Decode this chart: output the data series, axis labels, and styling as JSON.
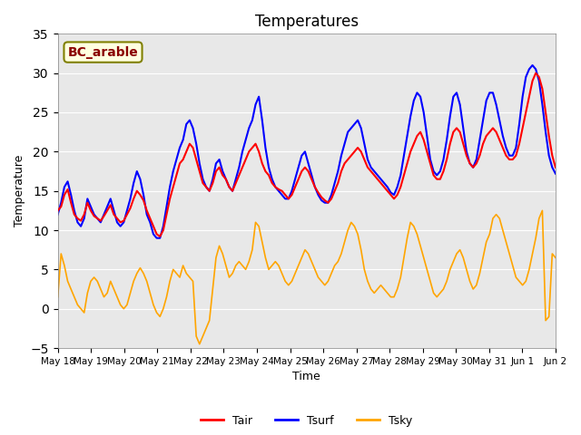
{
  "title": "Temperatures",
  "xlabel": "Time",
  "ylabel": "Temperature",
  "ylim": [
    -5,
    35
  ],
  "yticks": [
    -5,
    0,
    5,
    10,
    15,
    20,
    25,
    30,
    35
  ],
  "annotation": "BC_arable",
  "bg_color": "#e8e8e8",
  "line_colors": {
    "Tair": "red",
    "Tsurf": "blue",
    "Tsky": "orange"
  },
  "line_widths": {
    "Tair": 1.5,
    "Tsurf": 1.5,
    "Tsky": 1.2
  },
  "xtick_labels": [
    "May 18",
    "May 19",
    "May 20",
    "May 21",
    "May 22",
    "May 23",
    "May 24",
    "May 25",
    "May 26",
    "May 27",
    "May 28",
    "May 29",
    "May 30",
    "May 31",
    "Jun 1",
    "Jun 2"
  ],
  "Tair": [
    12.5,
    13.0,
    14.5,
    15.2,
    13.5,
    12.0,
    11.5,
    11.2,
    12.0,
    13.5,
    12.5,
    11.8,
    11.5,
    11.2,
    11.8,
    12.5,
    13.2,
    12.0,
    11.5,
    11.0,
    11.2,
    12.0,
    12.8,
    14.0,
    15.0,
    14.5,
    13.8,
    12.5,
    11.5,
    10.5,
    9.5,
    9.2,
    10.0,
    12.0,
    14.0,
    15.5,
    17.0,
    18.5,
    19.0,
    20.0,
    21.0,
    20.5,
    19.0,
    17.5,
    16.0,
    15.5,
    15.0,
    16.0,
    17.5,
    18.0,
    17.0,
    16.5,
    15.5,
    15.0,
    16.0,
    17.0,
    18.0,
    19.0,
    20.0,
    20.5,
    21.0,
    20.0,
    18.5,
    17.5,
    17.0,
    16.0,
    15.5,
    15.2,
    15.0,
    14.5,
    14.0,
    14.5,
    15.5,
    16.5,
    17.5,
    18.0,
    17.5,
    16.5,
    15.5,
    14.8,
    14.2,
    13.8,
    13.5,
    14.0,
    15.0,
    16.0,
    17.5,
    18.5,
    19.0,
    19.5,
    20.0,
    20.5,
    20.0,
    19.0,
    18.0,
    17.5,
    17.0,
    16.5,
    16.0,
    15.5,
    15.0,
    14.5,
    14.0,
    14.5,
    15.5,
    17.0,
    18.5,
    20.0,
    21.0,
    22.0,
    22.5,
    21.5,
    20.0,
    18.5,
    17.0,
    16.5,
    16.5,
    17.5,
    19.0,
    21.0,
    22.5,
    23.0,
    22.5,
    21.0,
    19.5,
    18.5,
    18.0,
    18.5,
    19.5,
    21.0,
    22.0,
    22.5,
    23.0,
    22.5,
    21.5,
    20.5,
    19.5,
    19.0,
    19.0,
    19.5,
    21.0,
    23.0,
    25.0,
    27.0,
    29.0,
    30.0,
    29.5,
    28.0,
    25.0,
    22.0,
    19.5,
    18.0
  ],
  "Tsurf": [
    12.0,
    13.5,
    15.5,
    16.2,
    14.5,
    12.5,
    11.0,
    10.5,
    11.5,
    14.0,
    13.0,
    12.0,
    11.5,
    11.0,
    12.0,
    13.0,
    14.0,
    12.5,
    11.0,
    10.5,
    11.0,
    12.5,
    14.0,
    16.0,
    17.5,
    16.5,
    14.5,
    12.0,
    11.0,
    9.5,
    9.0,
    9.0,
    10.5,
    13.0,
    15.5,
    17.5,
    19.0,
    20.5,
    21.5,
    23.5,
    24.0,
    23.0,
    21.0,
    18.5,
    16.5,
    15.5,
    15.0,
    16.5,
    18.5,
    19.0,
    17.5,
    16.5,
    15.5,
    15.0,
    16.5,
    18.0,
    20.0,
    21.5,
    23.0,
    24.0,
    26.0,
    27.0,
    24.0,
    20.5,
    18.0,
    16.5,
    15.5,
    15.0,
    14.5,
    14.0,
    14.0,
    15.0,
    16.5,
    18.0,
    19.5,
    20.0,
    18.5,
    17.0,
    15.5,
    14.5,
    13.8,
    13.5,
    13.5,
    14.5,
    16.0,
    17.5,
    19.5,
    21.0,
    22.5,
    23.0,
    23.5,
    24.0,
    23.0,
    21.0,
    19.0,
    18.0,
    17.5,
    17.0,
    16.5,
    16.0,
    15.5,
    14.8,
    14.5,
    15.5,
    17.0,
    19.5,
    22.0,
    24.5,
    26.5,
    27.5,
    27.0,
    25.0,
    22.0,
    19.0,
    17.5,
    17.0,
    17.5,
    19.0,
    21.5,
    24.5,
    27.0,
    27.5,
    26.0,
    23.0,
    20.0,
    18.5,
    18.0,
    19.0,
    21.5,
    24.0,
    26.5,
    27.5,
    27.5,
    26.0,
    24.0,
    22.0,
    20.5,
    19.5,
    19.5,
    20.5,
    23.5,
    27.0,
    29.5,
    30.5,
    31.0,
    30.5,
    29.0,
    26.0,
    22.5,
    19.5,
    18.0,
    17.2
  ],
  "Tsky": [
    1.5,
    7.0,
    5.5,
    3.5,
    2.5,
    1.5,
    0.5,
    0.0,
    -0.5,
    2.0,
    3.5,
    4.0,
    3.5,
    2.5,
    1.5,
    2.0,
    3.5,
    2.5,
    1.5,
    0.5,
    0.0,
    0.5,
    2.0,
    3.5,
    4.5,
    5.2,
    4.5,
    3.5,
    2.0,
    0.5,
    -0.5,
    -1.0,
    0.0,
    1.5,
    3.5,
    5.0,
    4.5,
    4.0,
    5.5,
    4.5,
    4.0,
    3.5,
    -3.5,
    -4.5,
    -3.5,
    -2.5,
    -1.5,
    2.5,
    6.5,
    8.0,
    7.0,
    5.5,
    4.0,
    4.5,
    5.5,
    6.0,
    5.5,
    5.0,
    6.0,
    7.5,
    11.0,
    10.5,
    8.5,
    6.5,
    5.0,
    5.5,
    6.0,
    5.5,
    4.5,
    3.5,
    3.0,
    3.5,
    4.5,
    5.5,
    6.5,
    7.5,
    7.0,
    6.0,
    5.0,
    4.0,
    3.5,
    3.0,
    3.5,
    4.5,
    5.5,
    6.0,
    7.0,
    8.5,
    10.0,
    11.0,
    10.5,
    9.5,
    7.5,
    5.0,
    3.5,
    2.5,
    2.0,
    2.5,
    3.0,
    2.5,
    2.0,
    1.5,
    1.5,
    2.5,
    4.0,
    6.5,
    9.0,
    11.0,
    10.5,
    9.5,
    8.0,
    6.5,
    5.0,
    3.5,
    2.0,
    1.5,
    2.0,
    2.5,
    3.5,
    5.0,
    6.0,
    7.0,
    7.5,
    6.5,
    5.0,
    3.5,
    2.5,
    3.0,
    4.5,
    6.5,
    8.5,
    9.5,
    11.5,
    12.0,
    11.5,
    10.0,
    8.5,
    7.0,
    5.5,
    4.0,
    3.5,
    3.0,
    3.5,
    5.0,
    7.0,
    9.0,
    11.5,
    12.5,
    -1.5,
    -1.0,
    7.0,
    6.5
  ]
}
